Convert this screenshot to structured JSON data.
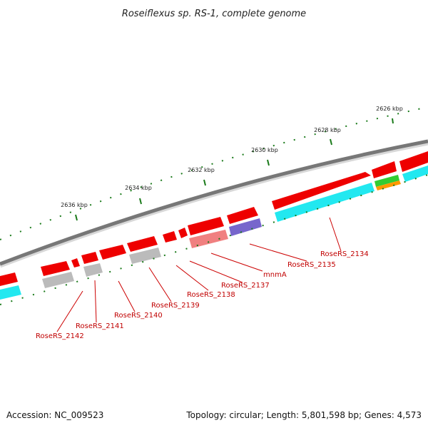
{
  "title": "Roseiflexus sp. RS-1, complete genome",
  "footer": {
    "accession": "Accession: NC_009523",
    "topology": "Topology: circular; Length: 5,801,598 bp; Genes: 4,573"
  },
  "scale_labels": [
    "2626 kbp",
    "2628 kbp",
    "2630 kbp",
    "2632 kbp",
    "2634 kbp",
    "2636 kbp"
  ],
  "gene_labels": [
    "RoseRS_2134",
    "RoseRS_2135",
    "mnmA",
    "RoseRS_2137",
    "RoseRS_2138",
    "RoseRS_2139",
    "RoseRS_2140",
    "RoseRS_2141",
    "RoseRS_2142"
  ],
  "colors": {
    "gene_arrow": "#ee0000",
    "backbone": "#777777",
    "ticks": "#1a7a1a",
    "cyan": "#22e8f0",
    "gray": "#bbbbbb",
    "salmon": "#f08080",
    "purple": "#7766cc",
    "green": "#33cc33",
    "orange": "#ff9900",
    "label": "#c00000"
  }
}
